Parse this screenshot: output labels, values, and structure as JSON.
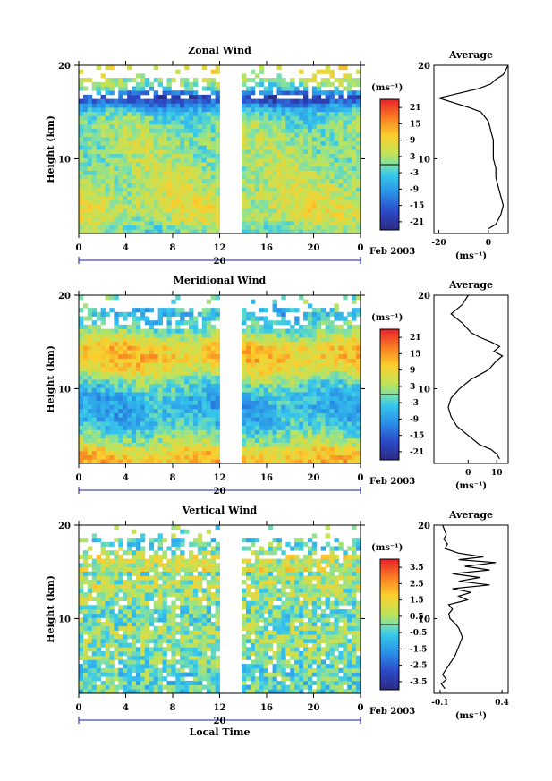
{
  "chart_data": [
    {
      "type": "heatmap",
      "title": "Zonal Wind",
      "ylabel": "Height (km)",
      "ylim": [
        2,
        20
      ],
      "yticks": [
        "10",
        "20"
      ],
      "xlim": [
        0,
        24
      ],
      "xticks": [
        "0",
        "4",
        "8",
        "12",
        "16",
        "20",
        "0"
      ],
      "date_label": "20",
      "month_label": "Feb 2003",
      "data_gap": [
        12,
        14
      ],
      "colorbar": {
        "unit": "(ms⁻¹)",
        "ticks": [
          "21",
          "15",
          "9",
          "3",
          "-3",
          "-9",
          "-15",
          "-21"
        ],
        "range": [
          -24,
          24
        ]
      },
      "profile": {
        "title": "Average",
        "xlabel": "(ms⁻¹)",
        "xlim": [
          -22,
          8
        ],
        "xticks": [
          "-20",
          "0"
        ],
        "points": [
          [
            8,
            20
          ],
          [
            6,
            19
          ],
          [
            3,
            18.5
          ],
          [
            1,
            18
          ],
          [
            -4,
            17.5
          ],
          [
            -12,
            17
          ],
          [
            -20,
            16.5
          ],
          [
            -14,
            16
          ],
          [
            -8,
            15.5
          ],
          [
            -3,
            15
          ],
          [
            0,
            14
          ],
          [
            1,
            13
          ],
          [
            2,
            12
          ],
          [
            2,
            11
          ],
          [
            2,
            10
          ],
          [
            3,
            9
          ],
          [
            3,
            8
          ],
          [
            4,
            7
          ],
          [
            5,
            6
          ],
          [
            6,
            5
          ],
          [
            5,
            4
          ],
          [
            3,
            3
          ],
          [
            0,
            2.5
          ]
        ]
      }
    },
    {
      "type": "heatmap",
      "title": "Meridional Wind",
      "ylabel": "Height (km)",
      "ylim": [
        2,
        20
      ],
      "yticks": [
        "10",
        "20"
      ],
      "xlim": [
        0,
        24
      ],
      "xticks": [
        "0",
        "4",
        "8",
        "12",
        "16",
        "20",
        "0"
      ],
      "date_label": "20",
      "month_label": "Feb 2003",
      "data_gap": [
        12,
        14
      ],
      "colorbar": {
        "unit": "(ms⁻¹)",
        "ticks": [
          "21",
          "15",
          "9",
          "3",
          "-3",
          "-9",
          "-15",
          "-21"
        ],
        "range": [
          -24,
          24
        ]
      },
      "profile": {
        "title": "Average",
        "xlabel": "(ms⁻¹)",
        "xlim": [
          -12,
          14
        ],
        "xticks": [
          "0",
          "10"
        ],
        "points": [
          [
            0,
            20
          ],
          [
            -2,
            19
          ],
          [
            -4,
            18.5
          ],
          [
            -6,
            18
          ],
          [
            -2,
            17
          ],
          [
            1,
            16
          ],
          [
            4,
            15.5
          ],
          [
            8,
            15
          ],
          [
            11,
            14.5
          ],
          [
            9,
            14
          ],
          [
            12,
            13.5
          ],
          [
            10,
            13
          ],
          [
            7,
            12
          ],
          [
            4,
            11.5
          ],
          [
            1,
            11
          ],
          [
            -3,
            10
          ],
          [
            -6,
            9
          ],
          [
            -7,
            8
          ],
          [
            -6,
            7
          ],
          [
            -4,
            6
          ],
          [
            0,
            5
          ],
          [
            4,
            4
          ],
          [
            8,
            3.5
          ],
          [
            10,
            3
          ],
          [
            11,
            2.5
          ]
        ]
      }
    },
    {
      "type": "heatmap",
      "title": "Vertical Wind",
      "ylabel": "Height (km)",
      "xlabel": "Local Time",
      "ylim": [
        2,
        20
      ],
      "yticks": [
        "10",
        "20"
      ],
      "xlim": [
        0,
        24
      ],
      "xticks": [
        "0",
        "4",
        "8",
        "12",
        "16",
        "20",
        "0"
      ],
      "date_label": "20",
      "month_label": "Feb 2003",
      "data_gap": [
        12,
        14
      ],
      "colorbar": {
        "unit": "(ms⁻¹)",
        "ticks": [
          "3.5",
          "2.5",
          "1.5",
          "0.5",
          "-0.5",
          "-1.5",
          "-2.5",
          "-3.5"
        ],
        "range": [
          -4,
          4
        ]
      },
      "profile": {
        "title": "Average",
        "xlabel": "(ms⁻¹)",
        "xlim": [
          -0.15,
          0.45
        ],
        "xticks": [
          "-0.1",
          "0.4"
        ],
        "points": [
          [
            -0.08,
            20
          ],
          [
            -0.05,
            19
          ],
          [
            -0.07,
            18.5
          ],
          [
            -0.04,
            18
          ],
          [
            -0.06,
            17.5
          ],
          [
            0.05,
            17
          ],
          [
            0.25,
            16.6
          ],
          [
            0.05,
            16.3
          ],
          [
            0.35,
            16
          ],
          [
            0.1,
            15.6
          ],
          [
            0.3,
            15.2
          ],
          [
            0.0,
            14.8
          ],
          [
            0.22,
            14.4
          ],
          [
            0.05,
            14
          ],
          [
            0.3,
            13.6
          ],
          [
            0.0,
            13.2
          ],
          [
            0.15,
            12.8
          ],
          [
            0.05,
            12.4
          ],
          [
            0.12,
            12
          ],
          [
            -0.03,
            11.5
          ],
          [
            0.0,
            11
          ],
          [
            -0.03,
            10.5
          ],
          [
            -0.02,
            10
          ],
          [
            0.02,
            9.5
          ],
          [
            0.05,
            9
          ],
          [
            0.08,
            8
          ],
          [
            0.05,
            7
          ],
          [
            0.02,
            6
          ],
          [
            -0.03,
            5
          ],
          [
            -0.08,
            4
          ],
          [
            -0.05,
            3.5
          ],
          [
            -0.09,
            3
          ],
          [
            -0.06,
            2.5
          ]
        ]
      }
    }
  ]
}
